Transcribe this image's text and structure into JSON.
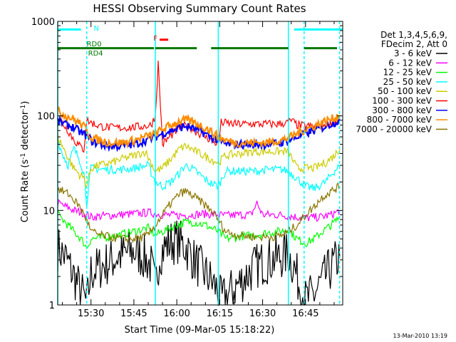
{
  "chart_data": {
    "type": "line",
    "title": "HESSI Observing Summary Count Rates",
    "xlabel": "Start Time (09-Mar-05 15:18:22)",
    "ylabel": "Count Rate (s",
    "ylabel_sup1": "-1",
    "ylabel_mid": " detector",
    "ylabel_sup2": "-1",
    "ylabel_end": ")",
    "x_unit": "minutes of day (UT)",
    "xlim": [
      918.37,
      1018.0
    ],
    "ylim": [
      1,
      1000
    ],
    "yscale": "log",
    "x_ticks": [
      {
        "value": 930,
        "label": "15:30"
      },
      {
        "value": 945,
        "label": "15:45"
      },
      {
        "value": 960,
        "label": "16:00"
      },
      {
        "value": 975,
        "label": "16:15"
      },
      {
        "value": 990,
        "label": "16:30"
      },
      {
        "value": 1005,
        "label": "16:45"
      }
    ],
    "y_ticks": [
      {
        "value": 1,
        "label": "1"
      },
      {
        "value": 10,
        "label": "10"
      },
      {
        "value": 100,
        "label": "100"
      },
      {
        "value": 1000,
        "label": "1000"
      }
    ],
    "legend": {
      "placement": "right",
      "header": [
        "Det 1,3,4,5,6,9,",
        "FDecim 2, Att 0"
      ],
      "entries": [
        {
          "label": "3 - 6 keV",
          "color": "#000000"
        },
        {
          "label": "6 - 12 keV",
          "color": "#ff00ff"
        },
        {
          "label": "12 - 25 keV",
          "color": "#00ff00"
        },
        {
          "label": "25 - 50 keV",
          "color": "#00ffff"
        },
        {
          "label": "50 - 100 keV",
          "color": "#cccc00"
        },
        {
          "label": "100 - 300 keV",
          "color": "#ff0000"
        },
        {
          "label": "300 - 800 keV",
          "color": "#0000ff"
        },
        {
          "label": "800 - 7000 keV",
          "color": "#ff8c00"
        },
        {
          "label": "7000 - 20000 keV",
          "color": "#8b7500"
        }
      ]
    },
    "flags": [
      {
        "label": "N",
        "color": "#00ffff",
        "level": 820,
        "segments": [
          [
            918.37,
            926.5
          ],
          [
            1001.0,
            1018.0
          ]
        ]
      },
      {
        "label": "F",
        "color": "#ff0000",
        "level": 640,
        "segments": [
          [
            954.0,
            957.0
          ]
        ]
      },
      {
        "label": "RD0",
        "color": "#007700",
        "level": 520,
        "segments": [
          [
            918.37,
            926.5
          ]
        ]
      },
      {
        "label": "RD4",
        "color": "#007700",
        "level": 520,
        "segments": [
          [
            926.5,
            952.0
          ],
          [
            952.5,
            967.0
          ],
          [
            972.0,
            999.0
          ],
          [
            1004.5,
            1016.0
          ]
        ]
      }
    ],
    "vlines_solid_cyan": [
      918.37,
      952.5,
      974.5,
      999.0
    ],
    "vlines_dashed_cyan": [
      928.5,
      1004.5,
      1016.9
    ],
    "series": [
      {
        "name": "3 - 6 keV",
        "color": "#000000",
        "x": [
          918.4,
          921,
          923.5,
          925.5,
          927,
          928.5,
          930,
          933,
          936,
          939,
          942,
          945,
          948,
          951,
          952.5,
          954,
          957,
          960,
          963,
          966,
          969,
          972,
          974.5,
          975.5,
          978,
          981,
          984,
          987,
          990,
          993,
          996,
          999,
          1001,
          1003,
          1005,
          1008,
          1011,
          1014,
          1017
        ],
        "y": [
          4,
          3.2,
          2.2,
          1.6,
          1.3,
          1.0,
          2.2,
          2.5,
          2.8,
          3.2,
          3.5,
          3.7,
          3.3,
          2.6,
          1.5,
          3.5,
          4.5,
          4.8,
          4.2,
          3.0,
          2.3,
          1.8,
          1.4,
          1.1,
          1.3,
          1.6,
          2.0,
          2.5,
          2.8,
          3.0,
          3.2,
          3.5,
          2.5,
          1.6,
          1.1,
          1.3,
          1.8,
          2.5,
          3.2
        ]
      },
      {
        "name": "6 - 12 keV",
        "color": "#ff00ff",
        "x": [
          918.4,
          921,
          924,
          927,
          928.5,
          930,
          935,
          940,
          945,
          950,
          952.5,
          955,
          960,
          965,
          970,
          974.5,
          977,
          982,
          986,
          988,
          990,
          994,
          999,
          1002,
          1005,
          1010,
          1014,
          1017
        ],
        "y": [
          12,
          11.0,
          10.0,
          9.5,
          9.0,
          8.5,
          8.8,
          9.0,
          9.2,
          9.5,
          9.3,
          9.0,
          8.8,
          9.0,
          9.2,
          9.0,
          8.8,
          9.0,
          9.0,
          12.0,
          9.0,
          9.0,
          8.8,
          8.5,
          8.3,
          8.5,
          9.0,
          10.0
        ]
      },
      {
        "name": "12 - 25 keV",
        "color": "#00ff00",
        "x": [
          918.4,
          921,
          924,
          927,
          928.5,
          930,
          935,
          940,
          945,
          950,
          952.5,
          955,
          960,
          963,
          966,
          970,
          974.5,
          977,
          982,
          987,
          992,
          996,
          999,
          1002,
          1005,
          1008,
          1011,
          1014,
          1017
        ],
        "y": [
          9,
          7.5,
          6.0,
          4.8,
          4.0,
          5.0,
          5.2,
          5.5,
          6.0,
          6.5,
          5.5,
          6.0,
          7.0,
          7.5,
          7.5,
          7.0,
          6.0,
          5.0,
          5.3,
          5.5,
          5.8,
          6.0,
          6.3,
          5.0,
          4.5,
          5.0,
          6.0,
          7.0,
          8.5
        ]
      },
      {
        "name": "25 - 50 keV",
        "color": "#00ffff",
        "x": [
          918.4,
          920,
          922,
          924,
          926,
          927.5,
          928.5,
          930,
          935,
          940,
          945,
          950,
          952.5,
          955,
          958,
          961,
          963,
          965,
          968,
          971,
          974.5,
          977,
          982,
          987,
          992,
          997,
          999,
          1002,
          1005,
          1008,
          1012,
          1015,
          1017
        ],
        "y": [
          55,
          40,
          30,
          45,
          35,
          25,
          12,
          28,
          27,
          27,
          28,
          30,
          20,
          18,
          20,
          25,
          30,
          28,
          24,
          20,
          18,
          26,
          26,
          26,
          27,
          27,
          26,
          22,
          18,
          17,
          20,
          26,
          30
        ]
      },
      {
        "name": "50 - 100 keV",
        "color": "#cccc00",
        "x": [
          918.4,
          920,
          922,
          924,
          926,
          927.5,
          928.5,
          930,
          933,
          937,
          941,
          945,
          949,
          952.5,
          955,
          958,
          961,
          963,
          965,
          968,
          971,
          974.5,
          977,
          982,
          987,
          992,
          996,
          999,
          1002,
          1005,
          1008,
          1012,
          1015,
          1017
        ],
        "y": [
          60,
          48,
          36,
          28,
          24,
          22,
          18,
          28,
          30,
          32,
          35,
          38,
          42,
          26,
          28,
          35,
          45,
          48,
          45,
          40,
          36,
          32,
          38,
          40,
          42,
          42,
          42,
          42,
          28,
          28,
          28,
          32,
          38,
          45
        ]
      },
      {
        "name": "100 - 300 keV",
        "color": "#ff0000",
        "x": [
          918.4,
          920,
          922,
          924,
          926,
          927.5,
          928.5,
          930,
          933,
          937,
          941,
          945,
          949,
          951,
          952.5,
          953.5,
          955,
          958,
          961,
          963,
          965,
          968,
          971,
          974.5,
          975.5,
          980,
          985,
          990,
          995,
          999,
          1000,
          1002,
          1005,
          1008,
          1012,
          1015,
          1017
        ],
        "y": [
          100,
          85,
          70,
          56,
          48,
          44,
          90,
          85,
          78,
          75,
          75,
          76,
          78,
          80,
          100,
          360,
          50,
          62,
          75,
          78,
          75,
          65,
          58,
          50,
          85,
          82,
          82,
          82,
          82,
          85,
          90,
          80,
          78,
          78,
          82,
          85,
          90
        ]
      },
      {
        "name": "300 - 800 keV",
        "color": "#0000ff",
        "x": [
          918.4,
          921,
          924,
          927,
          928.5,
          930,
          933,
          937,
          941,
          945,
          949,
          952.5,
          955,
          958,
          961,
          963,
          965,
          968,
          971,
          974.5,
          977,
          981,
          986,
          991,
          996,
          999,
          1002,
          1005,
          1008,
          1012,
          1015,
          1017
        ],
        "y": [
          88,
          82,
          75,
          65,
          62,
          55,
          50,
          48,
          48,
          50,
          55,
          60,
          65,
          70,
          75,
          78,
          75,
          70,
          62,
          55,
          50,
          50,
          50,
          50,
          52,
          55,
          60,
          65,
          70,
          78,
          85,
          90
        ]
      },
      {
        "name": "800 - 7000 keV",
        "color": "#ff8c00",
        "x": [
          918.4,
          921,
          924,
          927,
          928.5,
          930,
          933,
          937,
          941,
          945,
          949,
          952.5,
          955,
          958,
          961,
          963,
          965,
          968,
          971,
          974.5,
          977,
          981,
          986,
          991,
          996,
          999,
          1002,
          1005,
          1008,
          1012,
          1015,
          1017
        ],
        "y": [
          112,
          102,
          92,
          80,
          70,
          60,
          55,
          52,
          52,
          55,
          60,
          65,
          72,
          80,
          88,
          90,
          88,
          80,
          72,
          60,
          55,
          52,
          52,
          52,
          55,
          58,
          65,
          72,
          78,
          88,
          95,
          102
        ]
      },
      {
        "name": "7000 - 20000 keV",
        "color": "#8b7500",
        "x": [
          918.4,
          920,
          922,
          924,
          926,
          928.5,
          930,
          933,
          937,
          941,
          945,
          948,
          950,
          952.5,
          955,
          958,
          961,
          963,
          966,
          969,
          972,
          974.5,
          977,
          981,
          986,
          990,
          994,
          997,
          999,
          1002,
          1005,
          1008,
          1011,
          1014,
          1017
        ],
        "y": [
          17,
          16,
          15,
          13,
          11,
          8,
          6,
          5.5,
          5.2,
          5.0,
          5.0,
          5.2,
          5.5,
          7,
          9,
          12,
          15,
          16,
          14,
          12,
          10,
          8,
          6,
          5.5,
          5.3,
          5.2,
          5.3,
          5.5,
          6,
          7,
          9,
          11,
          14,
          16,
          18
        ]
      }
    ]
  },
  "footer": {
    "timestamp": "13-Mar-2010 13:19"
  }
}
